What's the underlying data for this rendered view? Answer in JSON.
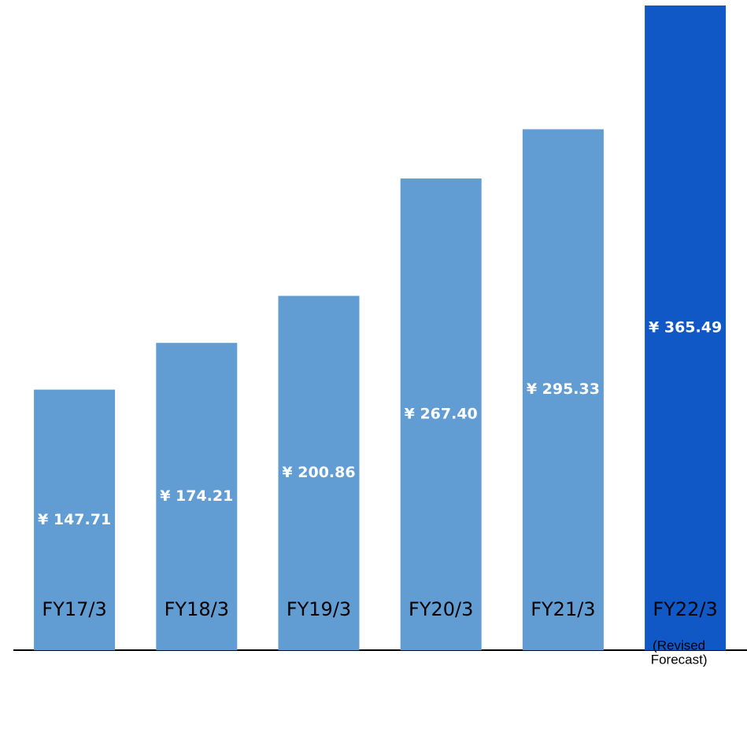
{
  "chart_data": {
    "type": "bar",
    "categories": [
      "FY17/3",
      "FY18/3",
      "FY19/3",
      "FY20/3",
      "FY21/3",
      "FY22/3"
    ],
    "values": [
      147.71,
      174.21,
      200.86,
      267.4,
      295.33,
      365.49
    ],
    "value_labels": [
      "¥ 147.71",
      "¥ 174.21",
      "¥ 200.86",
      "¥ 267.40",
      "¥ 295.33",
      "¥ 365.49"
    ],
    "colors": [
      "#619dd2",
      "#619dd2",
      "#619dd2",
      "#619dd2",
      "#619dd2",
      "#1158c7"
    ],
    "annotation": [
      "(Revised",
      "Forecast)"
    ]
  }
}
